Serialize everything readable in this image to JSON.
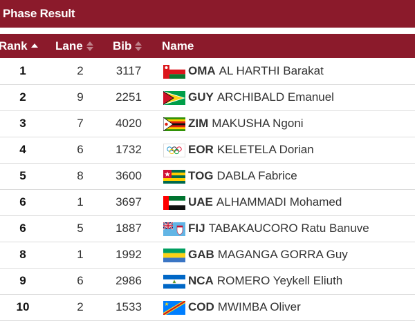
{
  "title": "Phase Result",
  "columns": {
    "rank": "Rank",
    "lane": "Lane",
    "bib": "Bib",
    "name": "Name"
  },
  "rows": [
    {
      "rank": "1",
      "lane": "2",
      "bib": "3117",
      "noc": "OMA",
      "athlete": "AL HARTHI Barakat"
    },
    {
      "rank": "2",
      "lane": "9",
      "bib": "2251",
      "noc": "GUY",
      "athlete": "ARCHIBALD Emanuel"
    },
    {
      "rank": "3",
      "lane": "7",
      "bib": "4020",
      "noc": "ZIM",
      "athlete": "MAKUSHA Ngoni"
    },
    {
      "rank": "4",
      "lane": "6",
      "bib": "1732",
      "noc": "EOR",
      "athlete": "KELETELA Dorian"
    },
    {
      "rank": "5",
      "lane": "8",
      "bib": "3600",
      "noc": "TOG",
      "athlete": "DABLA Fabrice"
    },
    {
      "rank": "6",
      "lane": "1",
      "bib": "3697",
      "noc": "UAE",
      "athlete": "ALHAMMADI Mohamed"
    },
    {
      "rank": "6",
      "lane": "5",
      "bib": "1887",
      "noc": "FIJ",
      "athlete": "TABAKAUCORO Ratu Banuve"
    },
    {
      "rank": "8",
      "lane": "1",
      "bib": "1992",
      "noc": "GAB",
      "athlete": "MAGANGA GORRA Guy"
    },
    {
      "rank": "9",
      "lane": "6",
      "bib": "2986",
      "noc": "NCA",
      "athlete": "ROMERO Yeykell Eliuth"
    },
    {
      "rank": "10",
      "lane": "2",
      "bib": "1533",
      "noc": "COD",
      "athlete": "MWIMBA Oliver"
    }
  ],
  "colors": {
    "header_bg": "#8b1a2b",
    "header_text": "#ffffff",
    "row_border": "#dcdcdc"
  }
}
